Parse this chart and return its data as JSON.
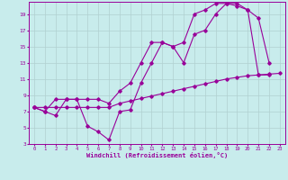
{
  "xlabel": "Windchill (Refroidissement éolien,°C)",
  "background_color": "#c8ecec",
  "grid_color": "#b0d0d0",
  "line_color": "#990099",
  "xlim": [
    -0.5,
    23.5
  ],
  "ylim": [
    3,
    20.5
  ],
  "xticks": [
    0,
    1,
    2,
    3,
    4,
    5,
    6,
    7,
    8,
    9,
    10,
    11,
    12,
    13,
    14,
    15,
    16,
    17,
    18,
    19,
    20,
    21,
    22,
    23
  ],
  "yticks": [
    3,
    5,
    7,
    9,
    11,
    13,
    15,
    17,
    19
  ],
  "series1_x": [
    0,
    1,
    2,
    3,
    4,
    5,
    6,
    7,
    8,
    9,
    10,
    11,
    12,
    13,
    14,
    15,
    16,
    17,
    18,
    19,
    20,
    21,
    22,
    23
  ],
  "series1_y": [
    7.5,
    7.5,
    7.5,
    7.5,
    7.5,
    7.5,
    7.5,
    7.5,
    8.0,
    8.3,
    8.6,
    8.9,
    9.2,
    9.5,
    9.8,
    10.1,
    10.4,
    10.7,
    11.0,
    11.2,
    11.4,
    11.5,
    11.6,
    11.7
  ],
  "series2_x": [
    0,
    1,
    2,
    3,
    4,
    5,
    6,
    7,
    8,
    9,
    10,
    11,
    12,
    13,
    14,
    15,
    16,
    17,
    18,
    19,
    20,
    21,
    22
  ],
  "series2_y": [
    7.5,
    7.0,
    6.5,
    8.5,
    8.5,
    5.2,
    4.5,
    3.5,
    7.0,
    7.2,
    10.5,
    13.0,
    15.5,
    15.0,
    13.0,
    16.5,
    17.0,
    19.0,
    20.3,
    20.3,
    19.5,
    18.5,
    13.0
  ],
  "series3_x": [
    0,
    1,
    2,
    3,
    4,
    5,
    6,
    7,
    8,
    9,
    10,
    11,
    12,
    13,
    14,
    15,
    16,
    17,
    18,
    19,
    20,
    21,
    22
  ],
  "series3_y": [
    7.5,
    7.0,
    8.5,
    8.5,
    8.5,
    8.5,
    8.5,
    8.0,
    9.5,
    10.5,
    13.0,
    15.5,
    15.5,
    15.0,
    15.5,
    19.0,
    19.5,
    20.3,
    20.3,
    20.0,
    19.5,
    11.5,
    11.5
  ]
}
